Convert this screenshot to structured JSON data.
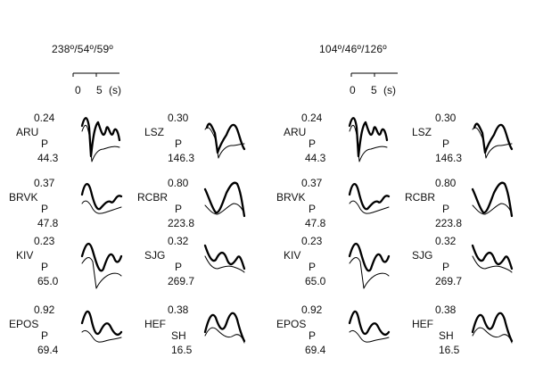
{
  "panels": [
    {
      "mechanism": "238º/54º/59º",
      "scale": {
        "tick0": "0",
        "tick1": "5",
        "unit": "(s)"
      },
      "stations": [
        {
          "code": "ARU",
          "ratio": "0.24",
          "phase": "P",
          "distance": "44.3"
        },
        {
          "code": "LSZ",
          "ratio": "0.30",
          "phase": "P",
          "distance": "146.3"
        },
        {
          "code": "BRVK",
          "ratio": "0.37",
          "phase": "P",
          "distance": "47.8"
        },
        {
          "code": "RCBR",
          "ratio": "0.80",
          "phase": "P",
          "distance": "223.8"
        },
        {
          "code": "KIV",
          "ratio": "0.23",
          "phase": "P",
          "distance": "65.0"
        },
        {
          "code": "SJG",
          "ratio": "0.32",
          "phase": "P",
          "distance": "269.7"
        },
        {
          "code": "EPOS",
          "ratio": "0.92",
          "phase": "P",
          "distance": "69.4"
        },
        {
          "code": "HEF",
          "ratio": "0.38",
          "phase": "SH",
          "distance": "16.5"
        }
      ]
    },
    {
      "mechanism": "104º/46º/126º",
      "scale": {
        "tick0": "0",
        "tick1": "5",
        "unit": "(s)"
      },
      "stations": [
        {
          "code": "ARU",
          "ratio": "0.24",
          "phase": "P",
          "distance": "44.3"
        },
        {
          "code": "LSZ",
          "ratio": "0.30",
          "phase": "P",
          "distance": "146.3"
        },
        {
          "code": "BRVK",
          "ratio": "0.37",
          "phase": "P",
          "distance": "47.8"
        },
        {
          "code": "RCBR",
          "ratio": "0.80",
          "phase": "P",
          "distance": "223.8"
        },
        {
          "code": "KIV",
          "ratio": "0.23",
          "phase": "P",
          "distance": "65.0"
        },
        {
          "code": "SJG",
          "ratio": "0.32",
          "phase": "P",
          "distance": "269.7"
        },
        {
          "code": "EPOS",
          "ratio": "0.92",
          "phase": "P",
          "distance": "69.4"
        },
        {
          "code": "HEF",
          "ratio": "0.38",
          "phase": "SH",
          "distance": "16.5"
        }
      ]
    }
  ]
}
